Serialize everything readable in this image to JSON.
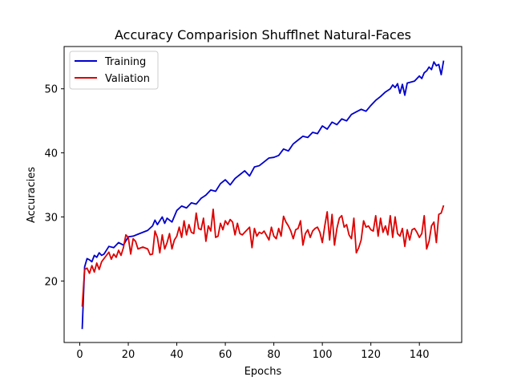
{
  "chart_data": {
    "type": "line",
    "title": "Accuracy Comparision Shufflnet Natural-Faces",
    "xlabel": "Epochs",
    "ylabel": "Accuracies",
    "xlim": [
      -6.45,
      157.45
    ],
    "ylim": [
      10.4,
      56.6
    ],
    "xticks": [
      0,
      20,
      40,
      60,
      80,
      100,
      120,
      140
    ],
    "yticks": [
      20,
      30,
      40,
      50
    ],
    "grid": false,
    "legend": "top-left",
    "series": [
      {
        "name": "Training",
        "color": "#0000cc",
        "points": [
          [
            1,
            12.5
          ],
          [
            2,
            22.2
          ],
          [
            3,
            23.5
          ],
          [
            4,
            23.3
          ],
          [
            5,
            23.0
          ],
          [
            6,
            24.0
          ],
          [
            7,
            23.7
          ],
          [
            8,
            24.4
          ],
          [
            9,
            24.0
          ],
          [
            10,
            24.2
          ],
          [
            12,
            25.4
          ],
          [
            14,
            25.2
          ],
          [
            16,
            26.0
          ],
          [
            18,
            25.6
          ],
          [
            20,
            26.9
          ],
          [
            22,
            27.0
          ],
          [
            24,
            27.3
          ],
          [
            26,
            27.6
          ],
          [
            28,
            27.9
          ],
          [
            30,
            28.6
          ],
          [
            31,
            29.5
          ],
          [
            32,
            28.8
          ],
          [
            34,
            30.0
          ],
          [
            35,
            29.0
          ],
          [
            36,
            29.8
          ],
          [
            38,
            29.2
          ],
          [
            40,
            31.0
          ],
          [
            42,
            31.7
          ],
          [
            44,
            31.4
          ],
          [
            46,
            32.2
          ],
          [
            48,
            32.0
          ],
          [
            50,
            32.9
          ],
          [
            52,
            33.4
          ],
          [
            54,
            34.2
          ],
          [
            56,
            34.0
          ],
          [
            58,
            35.2
          ],
          [
            60,
            35.8
          ],
          [
            62,
            35.0
          ],
          [
            64,
            36.0
          ],
          [
            66,
            36.6
          ],
          [
            68,
            37.2
          ],
          [
            70,
            36.4
          ],
          [
            72,
            37.8
          ],
          [
            74,
            38.0
          ],
          [
            76,
            38.6
          ],
          [
            78,
            39.2
          ],
          [
            80,
            39.3
          ],
          [
            82,
            39.6
          ],
          [
            84,
            40.6
          ],
          [
            86,
            40.3
          ],
          [
            88,
            41.4
          ],
          [
            90,
            42.0
          ],
          [
            92,
            42.6
          ],
          [
            94,
            42.4
          ],
          [
            96,
            43.2
          ],
          [
            98,
            43.0
          ],
          [
            100,
            44.2
          ],
          [
            102,
            43.7
          ],
          [
            104,
            44.8
          ],
          [
            106,
            44.4
          ],
          [
            108,
            45.3
          ],
          [
            110,
            45.0
          ],
          [
            112,
            46.0
          ],
          [
            114,
            46.4
          ],
          [
            116,
            46.8
          ],
          [
            118,
            46.5
          ],
          [
            120,
            47.4
          ],
          [
            122,
            48.2
          ],
          [
            124,
            48.8
          ],
          [
            126,
            49.5
          ],
          [
            128,
            50.0
          ],
          [
            129,
            50.6
          ],
          [
            130,
            50.2
          ],
          [
            131,
            50.8
          ],
          [
            132,
            49.3
          ],
          [
            133,
            50.7
          ],
          [
            134,
            49.0
          ],
          [
            135,
            50.9
          ],
          [
            136,
            51.0
          ],
          [
            138,
            51.2
          ],
          [
            140,
            52.0
          ],
          [
            141,
            51.6
          ],
          [
            142,
            52.5
          ],
          [
            143,
            52.8
          ],
          [
            144,
            53.4
          ],
          [
            145,
            53.0
          ],
          [
            146,
            54.2
          ],
          [
            147,
            53.6
          ],
          [
            148,
            53.8
          ],
          [
            149,
            52.2
          ],
          [
            150,
            54.4
          ]
        ]
      },
      {
        "name": "Valiation",
        "color": "#dd0000",
        "points": [
          [
            1,
            16.0
          ],
          [
            2,
            21.8
          ],
          [
            3,
            22.0
          ],
          [
            4,
            21.2
          ],
          [
            5,
            22.4
          ],
          [
            6,
            21.4
          ],
          [
            7,
            22.8
          ],
          [
            8,
            21.8
          ],
          [
            9,
            23.0
          ],
          [
            10,
            23.5
          ],
          [
            12,
            24.5
          ],
          [
            13,
            23.4
          ],
          [
            14,
            24.2
          ],
          [
            15,
            23.7
          ],
          [
            16,
            24.8
          ],
          [
            17,
            24.0
          ],
          [
            18,
            25.2
          ],
          [
            19,
            27.2
          ],
          [
            20,
            26.8
          ],
          [
            21,
            24.2
          ],
          [
            22,
            26.6
          ],
          [
            23,
            26.2
          ],
          [
            24,
            25.0
          ],
          [
            26,
            25.3
          ],
          [
            28,
            25.0
          ],
          [
            29,
            24.1
          ],
          [
            30,
            24.2
          ],
          [
            31,
            27.8
          ],
          [
            32,
            26.8
          ],
          [
            33,
            24.4
          ],
          [
            34,
            27.2
          ],
          [
            35,
            25.0
          ],
          [
            36,
            26.0
          ],
          [
            37,
            27.4
          ],
          [
            38,
            25.0
          ],
          [
            39,
            26.4
          ],
          [
            40,
            27.0
          ],
          [
            41,
            28.4
          ],
          [
            42,
            26.8
          ],
          [
            43,
            29.4
          ],
          [
            44,
            27.2
          ],
          [
            45,
            28.8
          ],
          [
            46,
            27.6
          ],
          [
            47,
            27.4
          ],
          [
            48,
            30.6
          ],
          [
            49,
            28.2
          ],
          [
            50,
            28.0
          ],
          [
            51,
            29.8
          ],
          [
            52,
            26.2
          ],
          [
            53,
            28.6
          ],
          [
            54,
            27.8
          ],
          [
            55,
            31.2
          ],
          [
            56,
            26.8
          ],
          [
            57,
            27.0
          ],
          [
            58,
            29.0
          ],
          [
            59,
            28.0
          ],
          [
            60,
            29.4
          ],
          [
            61,
            28.8
          ],
          [
            62,
            29.6
          ],
          [
            63,
            29.2
          ],
          [
            64,
            27.2
          ],
          [
            65,
            29.0
          ],
          [
            66,
            27.4
          ],
          [
            67,
            27.2
          ],
          [
            68,
            27.6
          ],
          [
            70,
            28.4
          ],
          [
            71,
            25.2
          ],
          [
            72,
            28.2
          ],
          [
            73,
            27.0
          ],
          [
            74,
            27.6
          ],
          [
            75,
            27.4
          ],
          [
            76,
            27.8
          ],
          [
            78,
            26.4
          ],
          [
            79,
            28.4
          ],
          [
            80,
            27.0
          ],
          [
            81,
            26.6
          ],
          [
            82,
            28.2
          ],
          [
            83,
            27.0
          ],
          [
            84,
            30.1
          ],
          [
            85,
            29.2
          ],
          [
            86,
            28.6
          ],
          [
            87,
            27.8
          ],
          [
            88,
            26.6
          ],
          [
            89,
            28.0
          ],
          [
            90,
            28.2
          ],
          [
            91,
            29.4
          ],
          [
            92,
            25.6
          ],
          [
            93,
            27.4
          ],
          [
            94,
            28.0
          ],
          [
            95,
            26.8
          ],
          [
            96,
            27.8
          ],
          [
            97,
            28.2
          ],
          [
            98,
            28.4
          ],
          [
            99,
            27.6
          ],
          [
            100,
            26.0
          ],
          [
            101,
            28.6
          ],
          [
            102,
            30.8
          ],
          [
            103,
            26.4
          ],
          [
            104,
            30.4
          ],
          [
            105,
            25.6
          ],
          [
            106,
            28.2
          ],
          [
            107,
            29.8
          ],
          [
            108,
            30.2
          ],
          [
            109,
            28.4
          ],
          [
            110,
            28.8
          ],
          [
            111,
            27.2
          ],
          [
            112,
            26.6
          ],
          [
            113,
            29.8
          ],
          [
            114,
            24.4
          ],
          [
            115,
            25.2
          ],
          [
            116,
            26.4
          ],
          [
            117,
            29.4
          ],
          [
            118,
            28.4
          ],
          [
            119,
            28.6
          ],
          [
            120,
            28.0
          ],
          [
            121,
            27.8
          ],
          [
            122,
            30.2
          ],
          [
            123,
            27.0
          ],
          [
            124,
            29.8
          ],
          [
            125,
            27.6
          ],
          [
            126,
            28.6
          ],
          [
            127,
            27.2
          ],
          [
            128,
            30.2
          ],
          [
            129,
            26.8
          ],
          [
            130,
            30.0
          ],
          [
            131,
            27.4
          ],
          [
            132,
            27.0
          ],
          [
            133,
            28.2
          ],
          [
            134,
            25.4
          ],
          [
            135,
            28.0
          ],
          [
            136,
            26.4
          ],
          [
            137,
            28.0
          ],
          [
            138,
            28.2
          ],
          [
            139,
            27.6
          ],
          [
            140,
            26.8
          ],
          [
            141,
            27.4
          ],
          [
            142,
            30.2
          ],
          [
            143,
            25.0
          ],
          [
            144,
            26.2
          ],
          [
            145,
            28.6
          ],
          [
            146,
            29.2
          ],
          [
            147,
            26.0
          ],
          [
            148,
            30.4
          ],
          [
            149,
            30.6
          ],
          [
            150,
            31.8
          ]
        ]
      }
    ]
  }
}
